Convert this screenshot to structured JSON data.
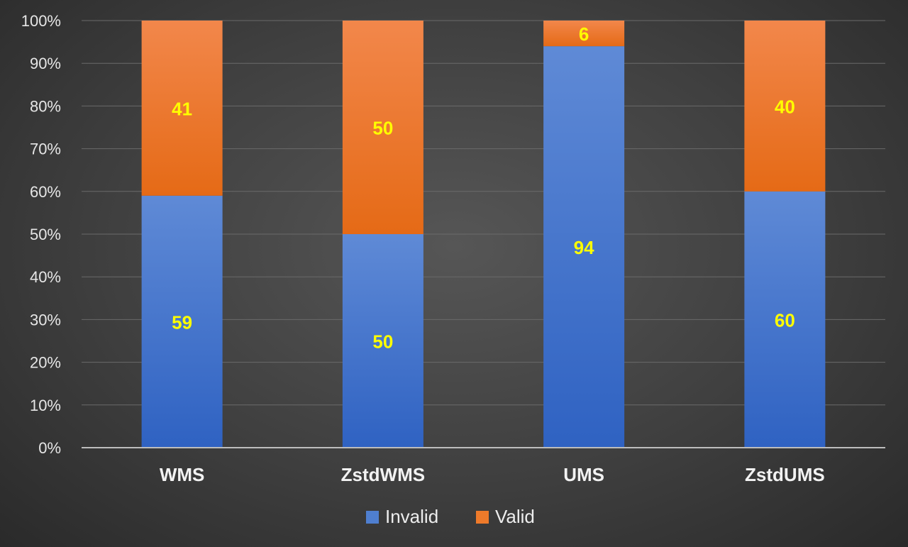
{
  "chart_data": {
    "type": "bar",
    "stacked": true,
    "normalized": true,
    "categories": [
      "WMS",
      "ZstdWMS",
      "UMS",
      "ZstdUMS"
    ],
    "series": [
      {
        "name": "Invalid",
        "values": [
          59,
          50,
          94,
          60
        ],
        "color": "#4f7fd0"
      },
      {
        "name": "Valid",
        "values": [
          41,
          50,
          6,
          40
        ],
        "color": "#ee7a2a"
      }
    ],
    "yticks": [
      "0%",
      "10%",
      "20%",
      "30%",
      "40%",
      "50%",
      "60%",
      "70%",
      "80%",
      "90%",
      "100%"
    ],
    "ylim": [
      0,
      100
    ],
    "grid": true,
    "legend_position": "bottom",
    "label_color": "#ffff00",
    "title": "",
    "xlabel": "",
    "ylabel": ""
  }
}
